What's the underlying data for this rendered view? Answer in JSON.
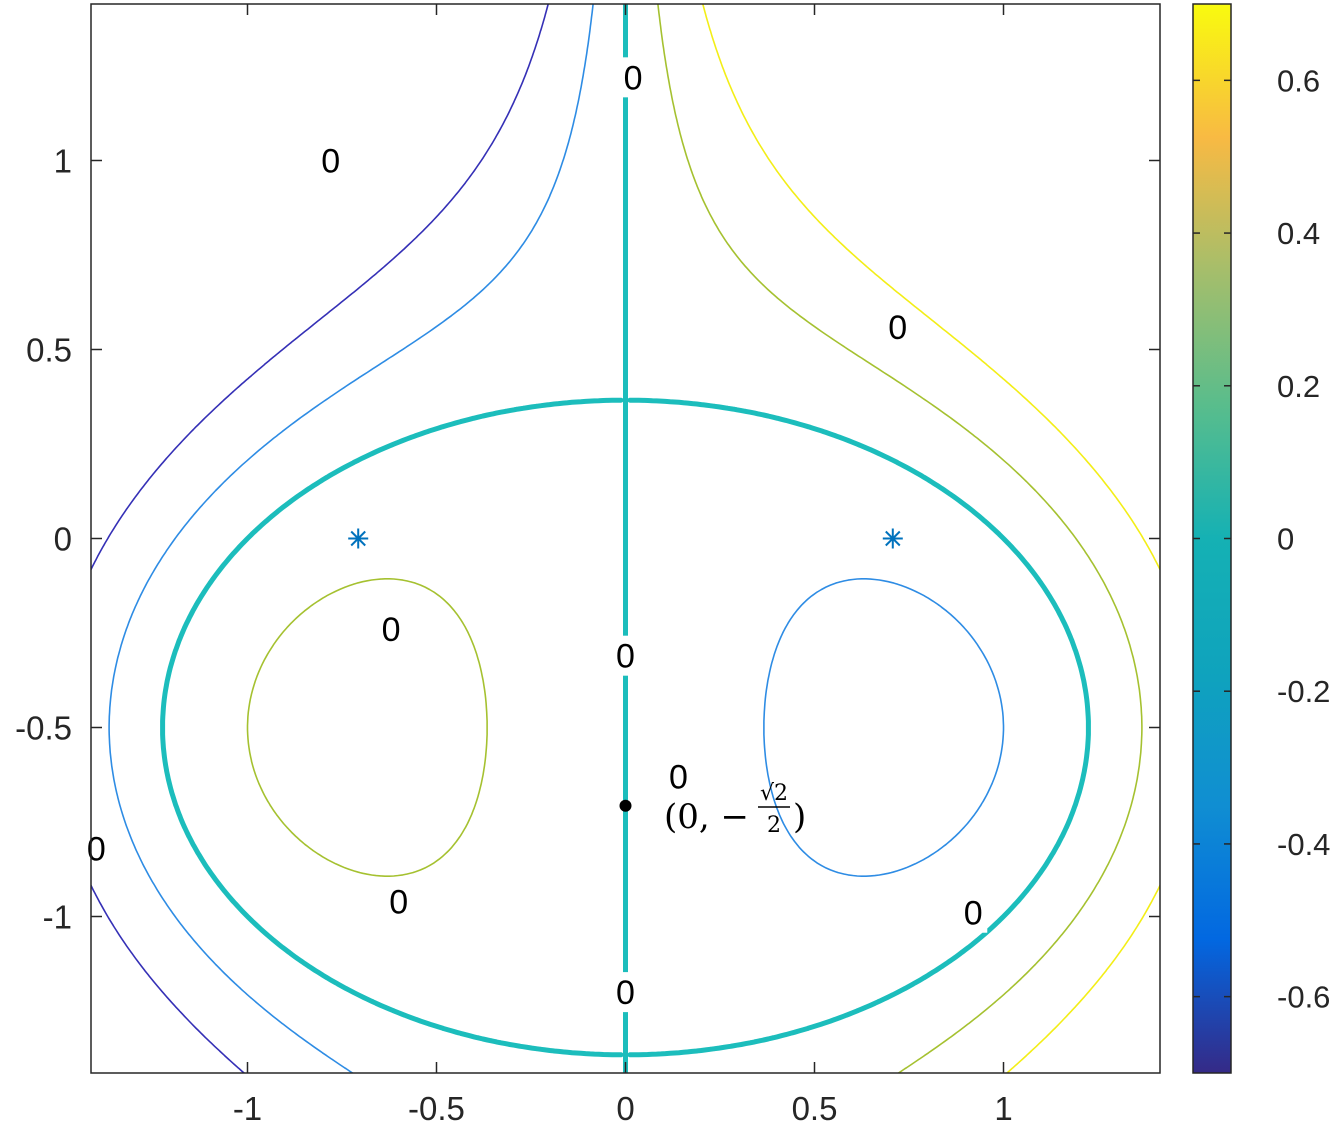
{
  "chart_data": {
    "type": "contour",
    "title": "",
    "xlabel": "",
    "ylabel": "",
    "xlim": [
      -1.414,
      1.414
    ],
    "ylim": [
      -1.414,
      1.414
    ],
    "x_ticks": [
      "-1",
      "-0.5",
      "0",
      "0.5",
      "1"
    ],
    "x_tick_values": [
      -1,
      -0.5,
      0,
      0.5,
      1
    ],
    "y_ticks": [
      "1",
      "0.5",
      "0",
      "-0.5",
      "-1"
    ],
    "y_tick_values": [
      1,
      0.5,
      0,
      -0.5,
      -1
    ],
    "grid": false,
    "colormap": "parula",
    "colorbar": {
      "range": [
        -0.7,
        0.7
      ],
      "ticks": [
        "0.6",
        "0.4",
        "0.2",
        "0",
        "-0.2",
        "-0.4",
        "-0.6"
      ],
      "tick_values": [
        0.6,
        0.4,
        0.2,
        0,
        -0.2,
        -0.4,
        -0.6
      ]
    },
    "levels": [
      {
        "level": -0.6,
        "color": "#3530b6",
        "emphasis": false
      },
      {
        "level": -0.25,
        "color": "#2e8ce4",
        "emphasis": false
      },
      {
        "level": 0,
        "color": "#1cbdbc",
        "emphasis": true,
        "label": "0"
      },
      {
        "level": 0.25,
        "color": "#a5c130",
        "emphasis": false
      },
      {
        "level": 0.6,
        "color": "#f3ee17",
        "emphasis": false
      }
    ],
    "markers": [
      {
        "x": -0.7071,
        "y": 0,
        "symbol": "*",
        "color": "#0072bd"
      },
      {
        "x": 0.7071,
        "y": 0,
        "symbol": "*",
        "color": "#0072bd"
      }
    ],
    "point": {
      "x": 0,
      "y": -0.7071,
      "color": "#000000"
    },
    "annotation": {
      "open": "(0, −",
      "num": "√2",
      "den": "2",
      "close": ")"
    }
  }
}
